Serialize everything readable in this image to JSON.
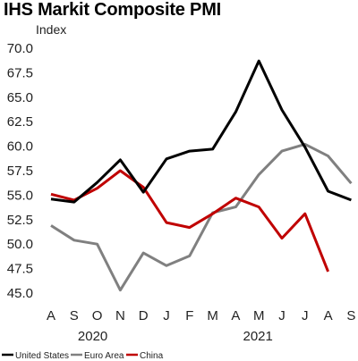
{
  "chart_data": {
    "type": "line",
    "title": "IHS Markit Composite PMI",
    "ylabel": "Index",
    "ylim": [
      45.0,
      70.0
    ],
    "yticks": [
      "45.0",
      "47.5",
      "50.0",
      "52.5",
      "55.0",
      "57.5",
      "60.0",
      "62.5",
      "65.0",
      "67.5",
      "70.0"
    ],
    "categories": [
      "A",
      "S",
      "O",
      "N",
      "D",
      "J",
      "F",
      "M",
      "A",
      "M",
      "J",
      "J",
      "A",
      "S"
    ],
    "year_labels": [
      "2020",
      "2021"
    ],
    "series": [
      {
        "name": "United States",
        "color": "#000000",
        "values": [
          54.6,
          54.3,
          56.3,
          58.6,
          55.3,
          58.7,
          59.5,
          59.7,
          63.5,
          68.7,
          63.7,
          59.9,
          55.4,
          54.5
        ]
      },
      {
        "name": "Euro Area",
        "color": "#808080",
        "values": [
          51.9,
          50.4,
          50.0,
          45.3,
          49.1,
          47.8,
          48.8,
          53.2,
          53.8,
          57.1,
          59.5,
          60.2,
          59.0,
          56.2
        ]
      },
      {
        "name": "China",
        "color": "#c00000",
        "values": [
          55.1,
          54.5,
          55.7,
          57.5,
          55.8,
          52.2,
          51.7,
          53.1,
          54.7,
          53.8,
          50.6,
          53.1,
          47.2,
          null
        ]
      }
    ]
  }
}
